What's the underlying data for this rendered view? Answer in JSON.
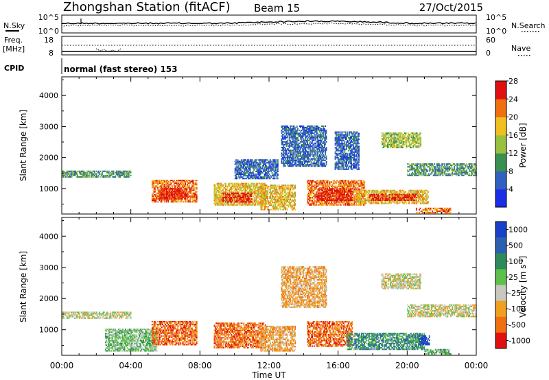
{
  "header": {
    "station": "Zhongshan Station (fitACF)",
    "beam": "Beam 15",
    "date": "27/Oct/2015"
  },
  "summary_panels": {
    "noise": {
      "left_label": "N.Sky",
      "left_ticks": [
        "10^5",
        "10^0"
      ],
      "right_label": "N.Search",
      "right_ticks": [
        "10^5",
        "10^0"
      ]
    },
    "frequency": {
      "left_label_1": "Freq.",
      "left_label_2": "[MHz]",
      "left_ticks": [
        "18",
        "8"
      ],
      "right_label": "Nave",
      "right_ticks": [
        "60",
        "0"
      ]
    },
    "cpid": {
      "left_label": "CPID",
      "text": "normal (fast stereo) 153"
    }
  },
  "chart_data": [
    {
      "type": "heatmap",
      "title": "",
      "xlabel": "Time UT",
      "ylabel": "Slant Range [km]",
      "colorbar_label": "Power [dB]",
      "x_range_hours": [
        0,
        24
      ],
      "ylim": [
        180,
        4600
      ],
      "x_ticks": [
        "00:00",
        "04:00",
        "08:00",
        "12:00",
        "16:00",
        "20:00",
        "00:00"
      ],
      "y_ticks": [
        1000,
        2000,
        3000,
        4000
      ],
      "colorbar_ticks": [
        "4",
        "8",
        "12",
        "16",
        "20",
        "24",
        "28"
      ],
      "colors": [
        "#1a2ee6",
        "#3060c0",
        "#3a9050",
        "#9ac040",
        "#f0c020",
        "#f07010",
        "#e01010"
      ],
      "regions": [
        {
          "t0": 0.0,
          "t1": 4.0,
          "r0": 1350,
          "r1": 1550,
          "level": 2
        },
        {
          "t0": 5.2,
          "t1": 7.8,
          "r0": 550,
          "r1": 1250,
          "level": 5
        },
        {
          "t0": 5.6,
          "t1": 7.2,
          "r0": 650,
          "r1": 1000,
          "level": 6
        },
        {
          "t0": 8.8,
          "t1": 11.8,
          "r0": 450,
          "r1": 1150,
          "level": 4
        },
        {
          "t0": 9.3,
          "t1": 11.0,
          "r0": 550,
          "r1": 850,
          "level": 6
        },
        {
          "t0": 10.0,
          "t1": 12.5,
          "r0": 1300,
          "r1": 1900,
          "level": 1
        },
        {
          "t0": 11.5,
          "t1": 13.5,
          "r0": 300,
          "r1": 1100,
          "level": 4
        },
        {
          "t0": 12.7,
          "t1": 15.3,
          "r0": 1700,
          "r1": 3000,
          "level": 1
        },
        {
          "t0": 14.2,
          "t1": 17.5,
          "r0": 450,
          "r1": 1250,
          "level": 5
        },
        {
          "t0": 14.8,
          "t1": 16.8,
          "r0": 600,
          "r1": 1000,
          "level": 6
        },
        {
          "t0": 15.8,
          "t1": 17.2,
          "r0": 1600,
          "r1": 2800,
          "level": 1
        },
        {
          "t0": 17.0,
          "t1": 21.2,
          "r0": 500,
          "r1": 950,
          "level": 4
        },
        {
          "t0": 17.8,
          "t1": 20.5,
          "r0": 600,
          "r1": 800,
          "level": 6
        },
        {
          "t0": 18.5,
          "t1": 20.8,
          "r0": 2300,
          "r1": 2800,
          "level": 3
        },
        {
          "t0": 20.0,
          "t1": 24.0,
          "r0": 1400,
          "r1": 1800,
          "level": 2
        },
        {
          "t0": 20.5,
          "t1": 22.5,
          "r0": 200,
          "r1": 350,
          "level": 5
        }
      ]
    },
    {
      "type": "heatmap",
      "title": "",
      "xlabel": "Time UT",
      "ylabel": "Slant Range [km]",
      "colorbar_label": "Velocity [m s-1]",
      "x_range_hours": [
        0,
        24
      ],
      "ylim": [
        180,
        4600
      ],
      "x_ticks": [
        "00:00",
        "04:00",
        "08:00",
        "12:00",
        "16:00",
        "20:00",
        "00:00"
      ],
      "y_ticks": [
        1000,
        2000,
        3000,
        4000
      ],
      "colorbar_ticks": [
        "1000",
        "500",
        "100",
        "25",
        "-25",
        "-100",
        "-500",
        "-1000"
      ],
      "colors": [
        "#1840c8",
        "#2a60b0",
        "#2e8a58",
        "#5cc04a",
        "#c8c8c0",
        "#f0a020",
        "#f07010",
        "#e01010"
      ],
      "regions": [
        {
          "t0": 0.0,
          "t1": 4.0,
          "r0": 1350,
          "r1": 1550,
          "level": 4
        },
        {
          "t0": 2.5,
          "t1": 5.5,
          "r0": 300,
          "r1": 1000,
          "level": 3
        },
        {
          "t0": 5.2,
          "t1": 7.8,
          "r0": 500,
          "r1": 1250,
          "level": 6
        },
        {
          "t0": 8.8,
          "t1": 11.8,
          "r0": 400,
          "r1": 1200,
          "level": 6
        },
        {
          "t0": 11.5,
          "t1": 13.5,
          "r0": 300,
          "r1": 1100,
          "level": 5
        },
        {
          "t0": 12.7,
          "t1": 15.3,
          "r0": 1700,
          "r1": 3000,
          "level": 5
        },
        {
          "t0": 14.2,
          "t1": 16.8,
          "r0": 450,
          "r1": 1250,
          "level": 6
        },
        {
          "t0": 16.5,
          "t1": 21.0,
          "r0": 350,
          "r1": 900,
          "level": 2
        },
        {
          "t0": 20.7,
          "t1": 21.3,
          "r0": 500,
          "r1": 800,
          "level": 0
        },
        {
          "t0": 18.5,
          "t1": 20.8,
          "r0": 2300,
          "r1": 2800,
          "level": 4
        },
        {
          "t0": 20.0,
          "t1": 24.0,
          "r0": 1400,
          "r1": 1800,
          "level": 4
        },
        {
          "t0": 21.0,
          "t1": 22.5,
          "r0": 200,
          "r1": 350,
          "level": 3
        }
      ]
    }
  ]
}
